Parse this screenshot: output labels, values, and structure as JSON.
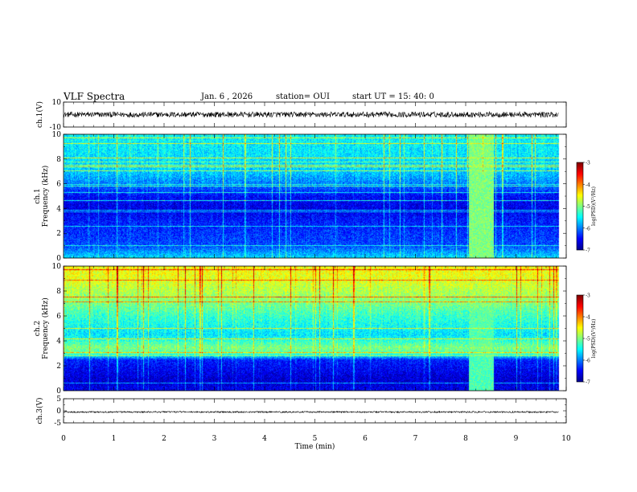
{
  "header": {
    "title": "VLF Spectra",
    "date": "Jan. 6 , 2026",
    "station": "station= OUI",
    "start": "start UT = 15: 40: 0"
  },
  "colors": {
    "colormap": [
      "#00008f",
      "#0000ff",
      "#0080ff",
      "#00ffff",
      "#80ff80",
      "#ffff00",
      "#ff8000",
      "#ff0000",
      "#800000"
    ],
    "trace": "#000000"
  },
  "chart_data": [
    {
      "type": "line",
      "name": "ch1-waveform",
      "ylabel": "ch.1(V)",
      "ylim": [
        -10,
        10
      ],
      "yticks": [
        "10",
        "-10"
      ],
      "mean": 0,
      "amplitude": 2.2
    },
    {
      "type": "heatmap",
      "name": "ch1-spectrogram",
      "ylabel": "ch.1 Frequency (kHz)",
      "ylim": [
        0,
        10
      ],
      "yticks": [
        "10",
        "8",
        "6",
        "4",
        "2",
        "0"
      ],
      "base_level_by_freq": [
        {
          "f": 0.0,
          "level": -5.6
        },
        {
          "f": 1.0,
          "level": -6.2
        },
        {
          "f": 2.0,
          "level": -6.3
        },
        {
          "f": 3.0,
          "level": -6.4
        },
        {
          "f": 4.0,
          "level": -6.6
        },
        {
          "f": 5.0,
          "level": -6.5
        },
        {
          "f": 6.0,
          "level": -6.0
        },
        {
          "f": 7.0,
          "level": -5.7
        },
        {
          "f": 8.0,
          "level": -5.6
        },
        {
          "f": 10.0,
          "level": -5.5
        }
      ],
      "burst": {
        "t_start": 8.05,
        "t_end": 8.55,
        "level": -5.0
      },
      "colorbar": {
        "label": "log(PSD)(V²/Hz)",
        "range": [
          -7,
          -3
        ],
        "ticks": [
          "-3",
          "-4",
          "-5",
          "-6",
          "-7"
        ]
      }
    },
    {
      "type": "heatmap",
      "name": "ch2-spectrogram",
      "ylabel": "ch.2 Frequency (kHz)",
      "ylim": [
        0,
        10
      ],
      "yticks": [
        "10",
        "8",
        "6",
        "4",
        "2",
        "0"
      ],
      "base_level_by_freq": [
        {
          "f": 0.0,
          "level": -6.6
        },
        {
          "f": 1.0,
          "level": -6.7
        },
        {
          "f": 2.5,
          "level": -6.4
        },
        {
          "f": 3.0,
          "level": -5.2
        },
        {
          "f": 3.5,
          "level": -5.0
        },
        {
          "f": 4.5,
          "level": -5.6
        },
        {
          "f": 6.0,
          "level": -5.3
        },
        {
          "f": 7.5,
          "level": -4.9
        },
        {
          "f": 9.0,
          "level": -4.6
        },
        {
          "f": 10.0,
          "level": -4.5
        }
      ],
      "burst": {
        "t_start": 8.05,
        "t_end": 8.55,
        "level": -5.2
      },
      "colorbar": {
        "label": "log(PSD)(V²/Hz)",
        "range": [
          -7,
          -3
        ],
        "ticks": [
          "-3",
          "-4",
          "-5",
          "-6",
          "-7"
        ]
      }
    },
    {
      "type": "line",
      "name": "ch3-waveform",
      "ylabel": "ch.3(V)",
      "ylim": [
        -5,
        5
      ],
      "yticks": [
        "5",
        "0",
        "-5"
      ],
      "mean": -0.5,
      "amplitude": 0.3
    }
  ],
  "time_axis": {
    "xlabel": "Time (min)",
    "xlim": [
      0,
      10
    ],
    "data_end": 9.85,
    "ticks": [
      "0",
      "1",
      "2",
      "3",
      "4",
      "5",
      "6",
      "7",
      "8",
      "9",
      "10"
    ]
  }
}
